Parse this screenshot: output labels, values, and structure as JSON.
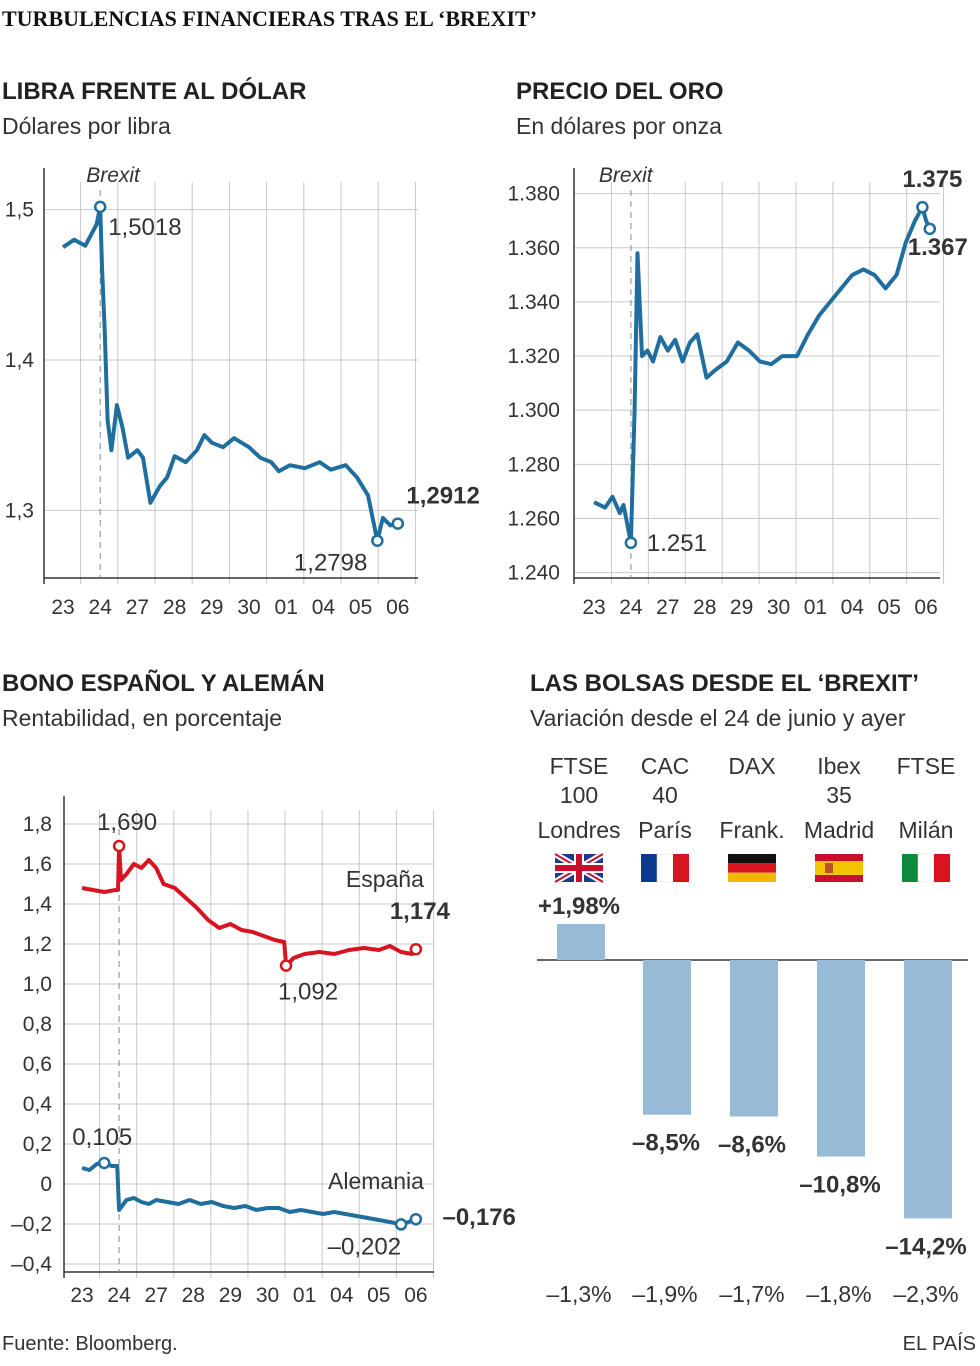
{
  "page": {
    "title": "TURBULENCIAS FINANCIERAS TRAS EL ‘BREXIT’",
    "source": "Fuente: Bloomberg.",
    "credit": "EL PAÍS"
  },
  "colors": {
    "blue": "#1f6e9e",
    "red": "#d7141f",
    "bar": "#97bbd6",
    "grid": "#c8c8c8",
    "axis": "#333333"
  },
  "chart_data": [
    {
      "type": "line",
      "title": "LIBRA FRENTE AL DÓLAR",
      "subtitle": "Dólares por libra",
      "brexit_label": "Brexit",
      "categories": [
        "23",
        "24",
        "27",
        "28",
        "29",
        "30",
        "01",
        "04",
        "05",
        "06"
      ],
      "y_ticks": [
        "1,5",
        "1,4",
        "1,3"
      ],
      "y_tick_values": [
        1.5,
        1.4,
        1.3
      ],
      "ylim": [
        1.255,
        1.525
      ],
      "series": [
        {
          "values": [
            [
              0,
              1.475
            ],
            [
              0.3,
              1.48
            ],
            [
              0.6,
              1.476
            ],
            [
              0.9,
              1.49
            ],
            [
              1.0,
              1.5018
            ],
            [
              1.05,
              1.46
            ],
            [
              1.12,
              1.42
            ],
            [
              1.2,
              1.36
            ],
            [
              1.3,
              1.34
            ],
            [
              1.45,
              1.37
            ],
            [
              1.6,
              1.355
            ],
            [
              1.75,
              1.335
            ],
            [
              2.0,
              1.34
            ],
            [
              2.15,
              1.335
            ],
            [
              2.35,
              1.305
            ],
            [
              2.6,
              1.316
            ],
            [
              2.8,
              1.322
            ],
            [
              3.0,
              1.336
            ],
            [
              3.3,
              1.332
            ],
            [
              3.6,
              1.34
            ],
            [
              3.8,
              1.35
            ],
            [
              4.0,
              1.345
            ],
            [
              4.3,
              1.342
            ],
            [
              4.6,
              1.348
            ],
            [
              5.0,
              1.342
            ],
            [
              5.3,
              1.335
            ],
            [
              5.6,
              1.332
            ],
            [
              5.8,
              1.326
            ],
            [
              6.1,
              1.33
            ],
            [
              6.5,
              1.328
            ],
            [
              6.9,
              1.332
            ],
            [
              7.2,
              1.327
            ],
            [
              7.6,
              1.33
            ],
            [
              7.9,
              1.322
            ],
            [
              8.2,
              1.31
            ],
            [
              8.45,
              1.2798
            ],
            [
              8.6,
              1.295
            ],
            [
              8.8,
              1.29
            ],
            [
              9.0,
              1.2912
            ]
          ]
        }
      ],
      "annotations": [
        {
          "label": "1,5018",
          "x": 1.0,
          "y": 1.5018
        },
        {
          "label": "1,2912",
          "x": 9.0,
          "y": 1.2912
        },
        {
          "label": "1,2798",
          "x": 8.45,
          "y": 1.2798
        }
      ]
    },
    {
      "type": "line",
      "title": "PRECIO DEL ORO",
      "subtitle": "En dólares por onza",
      "brexit_label": "Brexit",
      "categories": [
        "23",
        "24",
        "27",
        "28",
        "29",
        "30",
        "01",
        "04",
        "05",
        "06"
      ],
      "y_ticks": [
        "1.380",
        "1.360",
        "1.340",
        "1.320",
        "1.300",
        "1.280",
        "1.260",
        "1.240"
      ],
      "y_tick_values": [
        1380,
        1360,
        1340,
        1320,
        1300,
        1280,
        1260,
        1240
      ],
      "ylim": [
        1238,
        1388
      ],
      "series": [
        {
          "values": [
            [
              0,
              1266
            ],
            [
              0.3,
              1264
            ],
            [
              0.5,
              1268
            ],
            [
              0.7,
              1262
            ],
            [
              0.8,
              1265
            ],
            [
              1.0,
              1251
            ],
            [
              1.1,
              1300
            ],
            [
              1.18,
              1358
            ],
            [
              1.3,
              1320
            ],
            [
              1.45,
              1322
            ],
            [
              1.6,
              1318
            ],
            [
              1.8,
              1327
            ],
            [
              2.0,
              1322
            ],
            [
              2.2,
              1326
            ],
            [
              2.4,
              1318
            ],
            [
              2.6,
              1325
            ],
            [
              2.8,
              1328
            ],
            [
              3.05,
              1312
            ],
            [
              3.3,
              1315
            ],
            [
              3.6,
              1318
            ],
            [
              3.9,
              1325
            ],
            [
              4.2,
              1322
            ],
            [
              4.5,
              1318
            ],
            [
              4.8,
              1317
            ],
            [
              5.1,
              1320
            ],
            [
              5.5,
              1320
            ],
            [
              5.8,
              1328
            ],
            [
              6.1,
              1335
            ],
            [
              6.4,
              1340
            ],
            [
              6.7,
              1345
            ],
            [
              7.0,
              1350
            ],
            [
              7.3,
              1352
            ],
            [
              7.6,
              1350
            ],
            [
              7.9,
              1345
            ],
            [
              8.2,
              1350
            ],
            [
              8.45,
              1362
            ],
            [
              8.7,
              1370
            ],
            [
              8.9,
              1375
            ],
            [
              9.0,
              1370
            ],
            [
              9.1,
              1367
            ]
          ]
        }
      ],
      "annotations": [
        {
          "label": "1.375",
          "x": 8.9,
          "y": 1375
        },
        {
          "label": "1.367",
          "x": 9.1,
          "y": 1367
        },
        {
          "label": "1.251",
          "x": 1.0,
          "y": 1251
        }
      ]
    },
    {
      "type": "line",
      "title": "BONO ESPAÑOL Y ALEMÁN",
      "subtitle": "Rentabilidad, en porcentaje",
      "categories": [
        "23",
        "24",
        "27",
        "28",
        "29",
        "30",
        "01",
        "04",
        "05",
        "06"
      ],
      "y_ticks": [
        "1,8",
        "1,6",
        "1,4",
        "1,2",
        "1,0",
        "0,8",
        "0,6",
        "0,4",
        "0,2",
        "0",
        "–0,2",
        "–0,4"
      ],
      "y_tick_values": [
        1.8,
        1.6,
        1.4,
        1.2,
        1.0,
        0.8,
        0.6,
        0.4,
        0.2,
        0,
        -0.2,
        -0.4
      ],
      "ylim": [
        -0.44,
        1.92
      ],
      "series": [
        {
          "name": "España",
          "color": "red",
          "values": [
            [
              0,
              1.48
            ],
            [
              0.3,
              1.47
            ],
            [
              0.6,
              1.46
            ],
            [
              0.9,
              1.47
            ],
            [
              0.97,
              1.47
            ],
            [
              1.0,
              1.69
            ],
            [
              1.05,
              1.52
            ],
            [
              1.2,
              1.55
            ],
            [
              1.4,
              1.6
            ],
            [
              1.6,
              1.58
            ],
            [
              1.8,
              1.62
            ],
            [
              2.0,
              1.58
            ],
            [
              2.2,
              1.5
            ],
            [
              2.5,
              1.48
            ],
            [
              2.8,
              1.43
            ],
            [
              3.1,
              1.38
            ],
            [
              3.4,
              1.32
            ],
            [
              3.7,
              1.28
            ],
            [
              4.0,
              1.3
            ],
            [
              4.3,
              1.27
            ],
            [
              4.6,
              1.26
            ],
            [
              4.9,
              1.24
            ],
            [
              5.2,
              1.22
            ],
            [
              5.45,
              1.21
            ],
            [
              5.5,
              1.09
            ],
            [
              5.7,
              1.13
            ],
            [
              6.0,
              1.15
            ],
            [
              6.4,
              1.16
            ],
            [
              6.8,
              1.15
            ],
            [
              7.2,
              1.17
            ],
            [
              7.6,
              1.18
            ],
            [
              8.0,
              1.17
            ],
            [
              8.3,
              1.19
            ],
            [
              8.6,
              1.16
            ],
            [
              8.9,
              1.15
            ],
            [
              9.0,
              1.174
            ]
          ]
        },
        {
          "name": "Alemania",
          "color": "blue",
          "values": [
            [
              0,
              0.08
            ],
            [
              0.2,
              0.07
            ],
            [
              0.4,
              0.1
            ],
            [
              0.6,
              0.105
            ],
            [
              0.8,
              0.09
            ],
            [
              0.95,
              0.09
            ],
            [
              1.0,
              -0.13
            ],
            [
              1.2,
              -0.08
            ],
            [
              1.4,
              -0.07
            ],
            [
              1.6,
              -0.09
            ],
            [
              1.8,
              -0.1
            ],
            [
              2.0,
              -0.08
            ],
            [
              2.3,
              -0.09
            ],
            [
              2.6,
              -0.1
            ],
            [
              2.9,
              -0.08
            ],
            [
              3.2,
              -0.1
            ],
            [
              3.5,
              -0.09
            ],
            [
              3.8,
              -0.11
            ],
            [
              4.1,
              -0.12
            ],
            [
              4.4,
              -0.11
            ],
            [
              4.7,
              -0.13
            ],
            [
              5.0,
              -0.12
            ],
            [
              5.3,
              -0.12
            ],
            [
              5.6,
              -0.14
            ],
            [
              5.9,
              -0.13
            ],
            [
              6.2,
              -0.14
            ],
            [
              6.5,
              -0.15
            ],
            [
              6.8,
              -0.14
            ],
            [
              7.1,
              -0.15
            ],
            [
              7.4,
              -0.16
            ],
            [
              7.7,
              -0.17
            ],
            [
              8.0,
              -0.18
            ],
            [
              8.3,
              -0.19
            ],
            [
              8.6,
              -0.202
            ],
            [
              8.8,
              -0.19
            ],
            [
              9.0,
              -0.176
            ]
          ]
        }
      ],
      "annotations": [
        {
          "label": "1,690",
          "x": 1.0,
          "y": 1.69
        },
        {
          "label": "1,174",
          "x": 9.0,
          "y": 1.174
        },
        {
          "label": "1,092",
          "x": 5.5,
          "y": 1.092
        },
        {
          "label": "0,105",
          "x": 0.6,
          "y": 0.105
        },
        {
          "label": "–0,176",
          "x": 9.0,
          "y": -0.176
        },
        {
          "label": "–0,202",
          "x": 8.6,
          "y": -0.202
        }
      ]
    },
    {
      "type": "bar",
      "title": "LAS BOLSAS DESDE EL ‘BREXIT’",
      "subtitle": "Variación desde el 24 de junio y ayer",
      "categories": [
        {
          "index": "FTSE",
          "index2": "100",
          "city": "Londres",
          "flag": "uk"
        },
        {
          "index": "CAC",
          "index2": "40",
          "city": "París",
          "flag": "france"
        },
        {
          "index": "DAX",
          "index2": "",
          "city": "Frank.",
          "flag": "germany"
        },
        {
          "index": "Ibex",
          "index2": "35",
          "city": "Madrid",
          "flag": "spain"
        },
        {
          "index": "FTSE",
          "index2": "",
          "city": "Milán",
          "flag": "italy"
        }
      ],
      "values": [
        1.98,
        -8.5,
        -8.6,
        -10.8,
        -14.2
      ],
      "value_labels": [
        "+1,98%",
        "–8,5%",
        "–8,6%",
        "–10,8%",
        "–14,2%"
      ],
      "yesterday_labels": [
        "–1,3%",
        "–1,9%",
        "–1,7%",
        "–1,8%",
        "–2,3%"
      ]
    }
  ]
}
